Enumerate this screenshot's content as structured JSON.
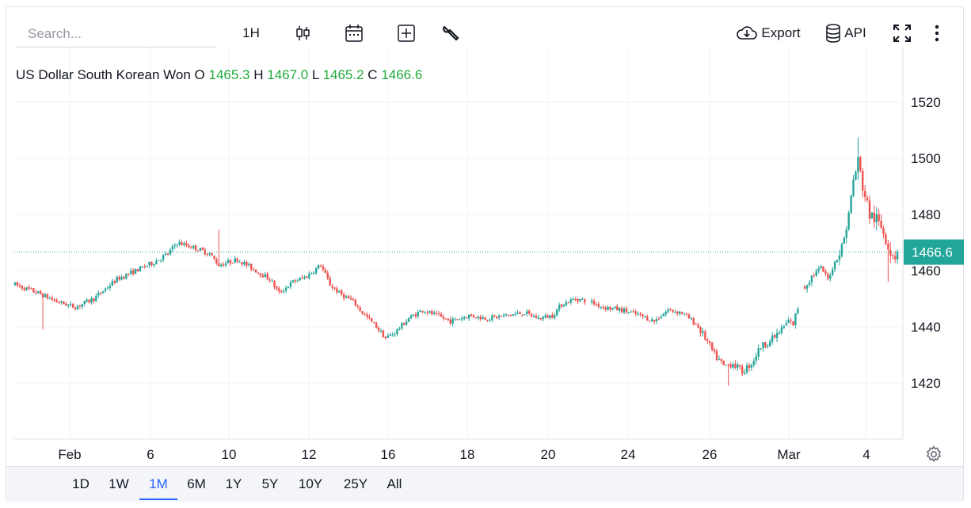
{
  "toolbar": {
    "search_placeholder": "Search...",
    "interval": "1H",
    "export_label": "Export",
    "api_label": "API"
  },
  "legend": {
    "symbol": "US Dollar South Korean Won",
    "o_label": "O",
    "o": "1465.3",
    "h_label": "H",
    "h": "1467.0",
    "l_label": "L",
    "l": "1465.2",
    "c_label": "C",
    "c": "1466.6"
  },
  "last_price_label": "1466.6",
  "ranges": [
    "1D",
    "1W",
    "1M",
    "6M",
    "1Y",
    "5Y",
    "10Y",
    "25Y",
    "All"
  ],
  "active_range": "1M",
  "colors": {
    "up": "#26a69a",
    "down": "#ef5350",
    "last_price": "#22a699",
    "legend_values": "#22ab3e",
    "active_range": "#2962ff"
  },
  "chart_data": {
    "type": "candlestick",
    "title": "US Dollar South Korean Won",
    "interval": "1H",
    "y_ticks": [
      1420,
      1440,
      1460,
      1480,
      1500,
      1520
    ],
    "x_ticks": [
      "Feb",
      "6",
      "10",
      "12",
      "16",
      "18",
      "20",
      "24",
      "26",
      "Mar",
      "4"
    ],
    "last_price": 1466.6,
    "grid": true,
    "path": [
      [
        0,
        1455
      ],
      [
        10,
        1452
      ],
      [
        18,
        1449
      ],
      [
        26,
        1447
      ],
      [
        34,
        1450
      ],
      [
        44,
        1457
      ],
      [
        52,
        1460
      ],
      [
        60,
        1463
      ],
      [
        66,
        1466
      ],
      [
        70,
        1470
      ],
      [
        78,
        1468
      ],
      [
        84,
        1466
      ],
      [
        88,
        1462
      ],
      [
        96,
        1464
      ],
      [
        104,
        1460
      ],
      [
        110,
        1457
      ],
      [
        114,
        1452
      ],
      [
        120,
        1456
      ],
      [
        126,
        1458
      ],
      [
        132,
        1462
      ],
      [
        136,
        1455
      ],
      [
        140,
        1452
      ],
      [
        146,
        1449
      ],
      [
        150,
        1445
      ],
      [
        156,
        1440
      ],
      [
        160,
        1436
      ],
      [
        164,
        1438
      ],
      [
        170,
        1443
      ],
      [
        176,
        1446
      ],
      [
        182,
        1444
      ],
      [
        188,
        1442
      ],
      [
        196,
        1444
      ],
      [
        204,
        1443
      ],
      [
        212,
        1444
      ],
      [
        220,
        1445
      ],
      [
        226,
        1443
      ],
      [
        232,
        1444
      ],
      [
        236,
        1448
      ],
      [
        242,
        1450
      ],
      [
        248,
        1449
      ],
      [
        254,
        1447
      ],
      [
        262,
        1446
      ],
      [
        270,
        1444
      ],
      [
        276,
        1442
      ],
      [
        282,
        1446
      ],
      [
        288,
        1445
      ],
      [
        294,
        1441
      ],
      [
        298,
        1436
      ],
      [
        302,
        1430
      ],
      [
        306,
        1426
      ],
      [
        310,
        1427
      ],
      [
        314,
        1424
      ],
      [
        318,
        1427
      ],
      [
        322,
        1433
      ],
      [
        326,
        1435
      ],
      [
        330,
        1438
      ],
      [
        334,
        1442
      ],
      [
        336,
        1441
      ],
      [
        340,
        1453
      ],
      [
        344,
        1458
      ],
      [
        348,
        1461
      ],
      [
        351,
        1457
      ],
      [
        354,
        1463
      ],
      [
        357,
        1468
      ],
      [
        360,
        1480
      ],
      [
        362,
        1492
      ],
      [
        364,
        1499
      ],
      [
        366,
        1490
      ],
      [
        369,
        1480
      ],
      [
        372,
        1478
      ],
      [
        375,
        1474
      ],
      [
        378,
        1467
      ],
      [
        380,
        1465.3
      ],
      [
        381,
        1466.6
      ]
    ],
    "spikes": [
      {
        "i": 88,
        "high": 1474.5
      },
      {
        "i": 12,
        "low": 1439
      },
      {
        "i": 308,
        "low": 1419
      },
      {
        "i": 364,
        "high": 1507.5
      },
      {
        "i": 377,
        "low": 1456
      }
    ],
    "gaps": [
      {
        "from": 246,
        "to": 249
      },
      {
        "from": 338,
        "to": 341
      }
    ]
  }
}
